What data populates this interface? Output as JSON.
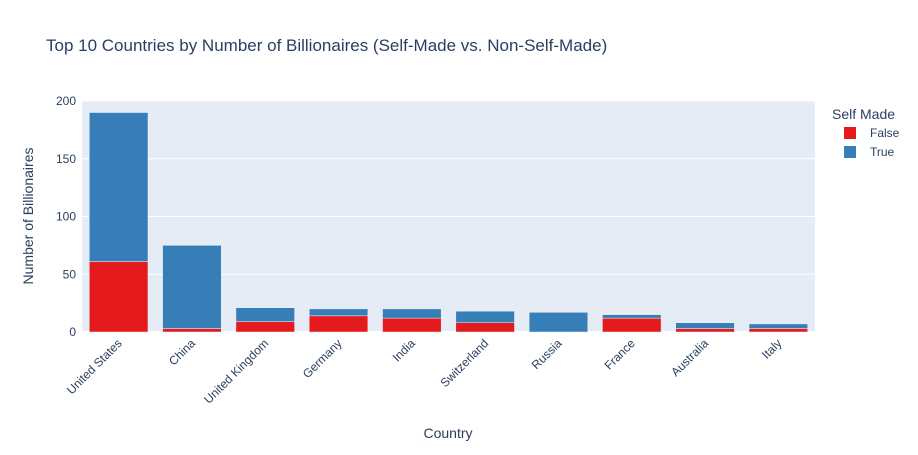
{
  "chart_data": {
    "type": "bar",
    "barmode": "stack",
    "title": "Top 10 Countries by Number of Billionaires (Self-Made vs. Non-Self-Made)",
    "xlabel": "Country",
    "ylabel": "Number of Billionaires",
    "categories": [
      "United States",
      "China",
      "United Kingdom",
      "Germany",
      "India",
      "Switzerland",
      "Russia",
      "France",
      "Australia",
      "Italy"
    ],
    "series": [
      {
        "name": "False",
        "color": "#e41a1c",
        "values": [
          61,
          3,
          9,
          14,
          12,
          8,
          0,
          12,
          3,
          3
        ]
      },
      {
        "name": "True",
        "color": "#377eb8",
        "values": [
          129,
          72,
          12,
          6,
          8,
          10,
          17,
          3,
          5,
          4
        ]
      }
    ],
    "ylim": [
      0,
      200
    ],
    "yticks": [
      0,
      50,
      100,
      150,
      200
    ],
    "grid": true,
    "legend_title": "Self Made",
    "legend_placement": "top-right",
    "plot_bgcolor": "#e5ecf6"
  }
}
